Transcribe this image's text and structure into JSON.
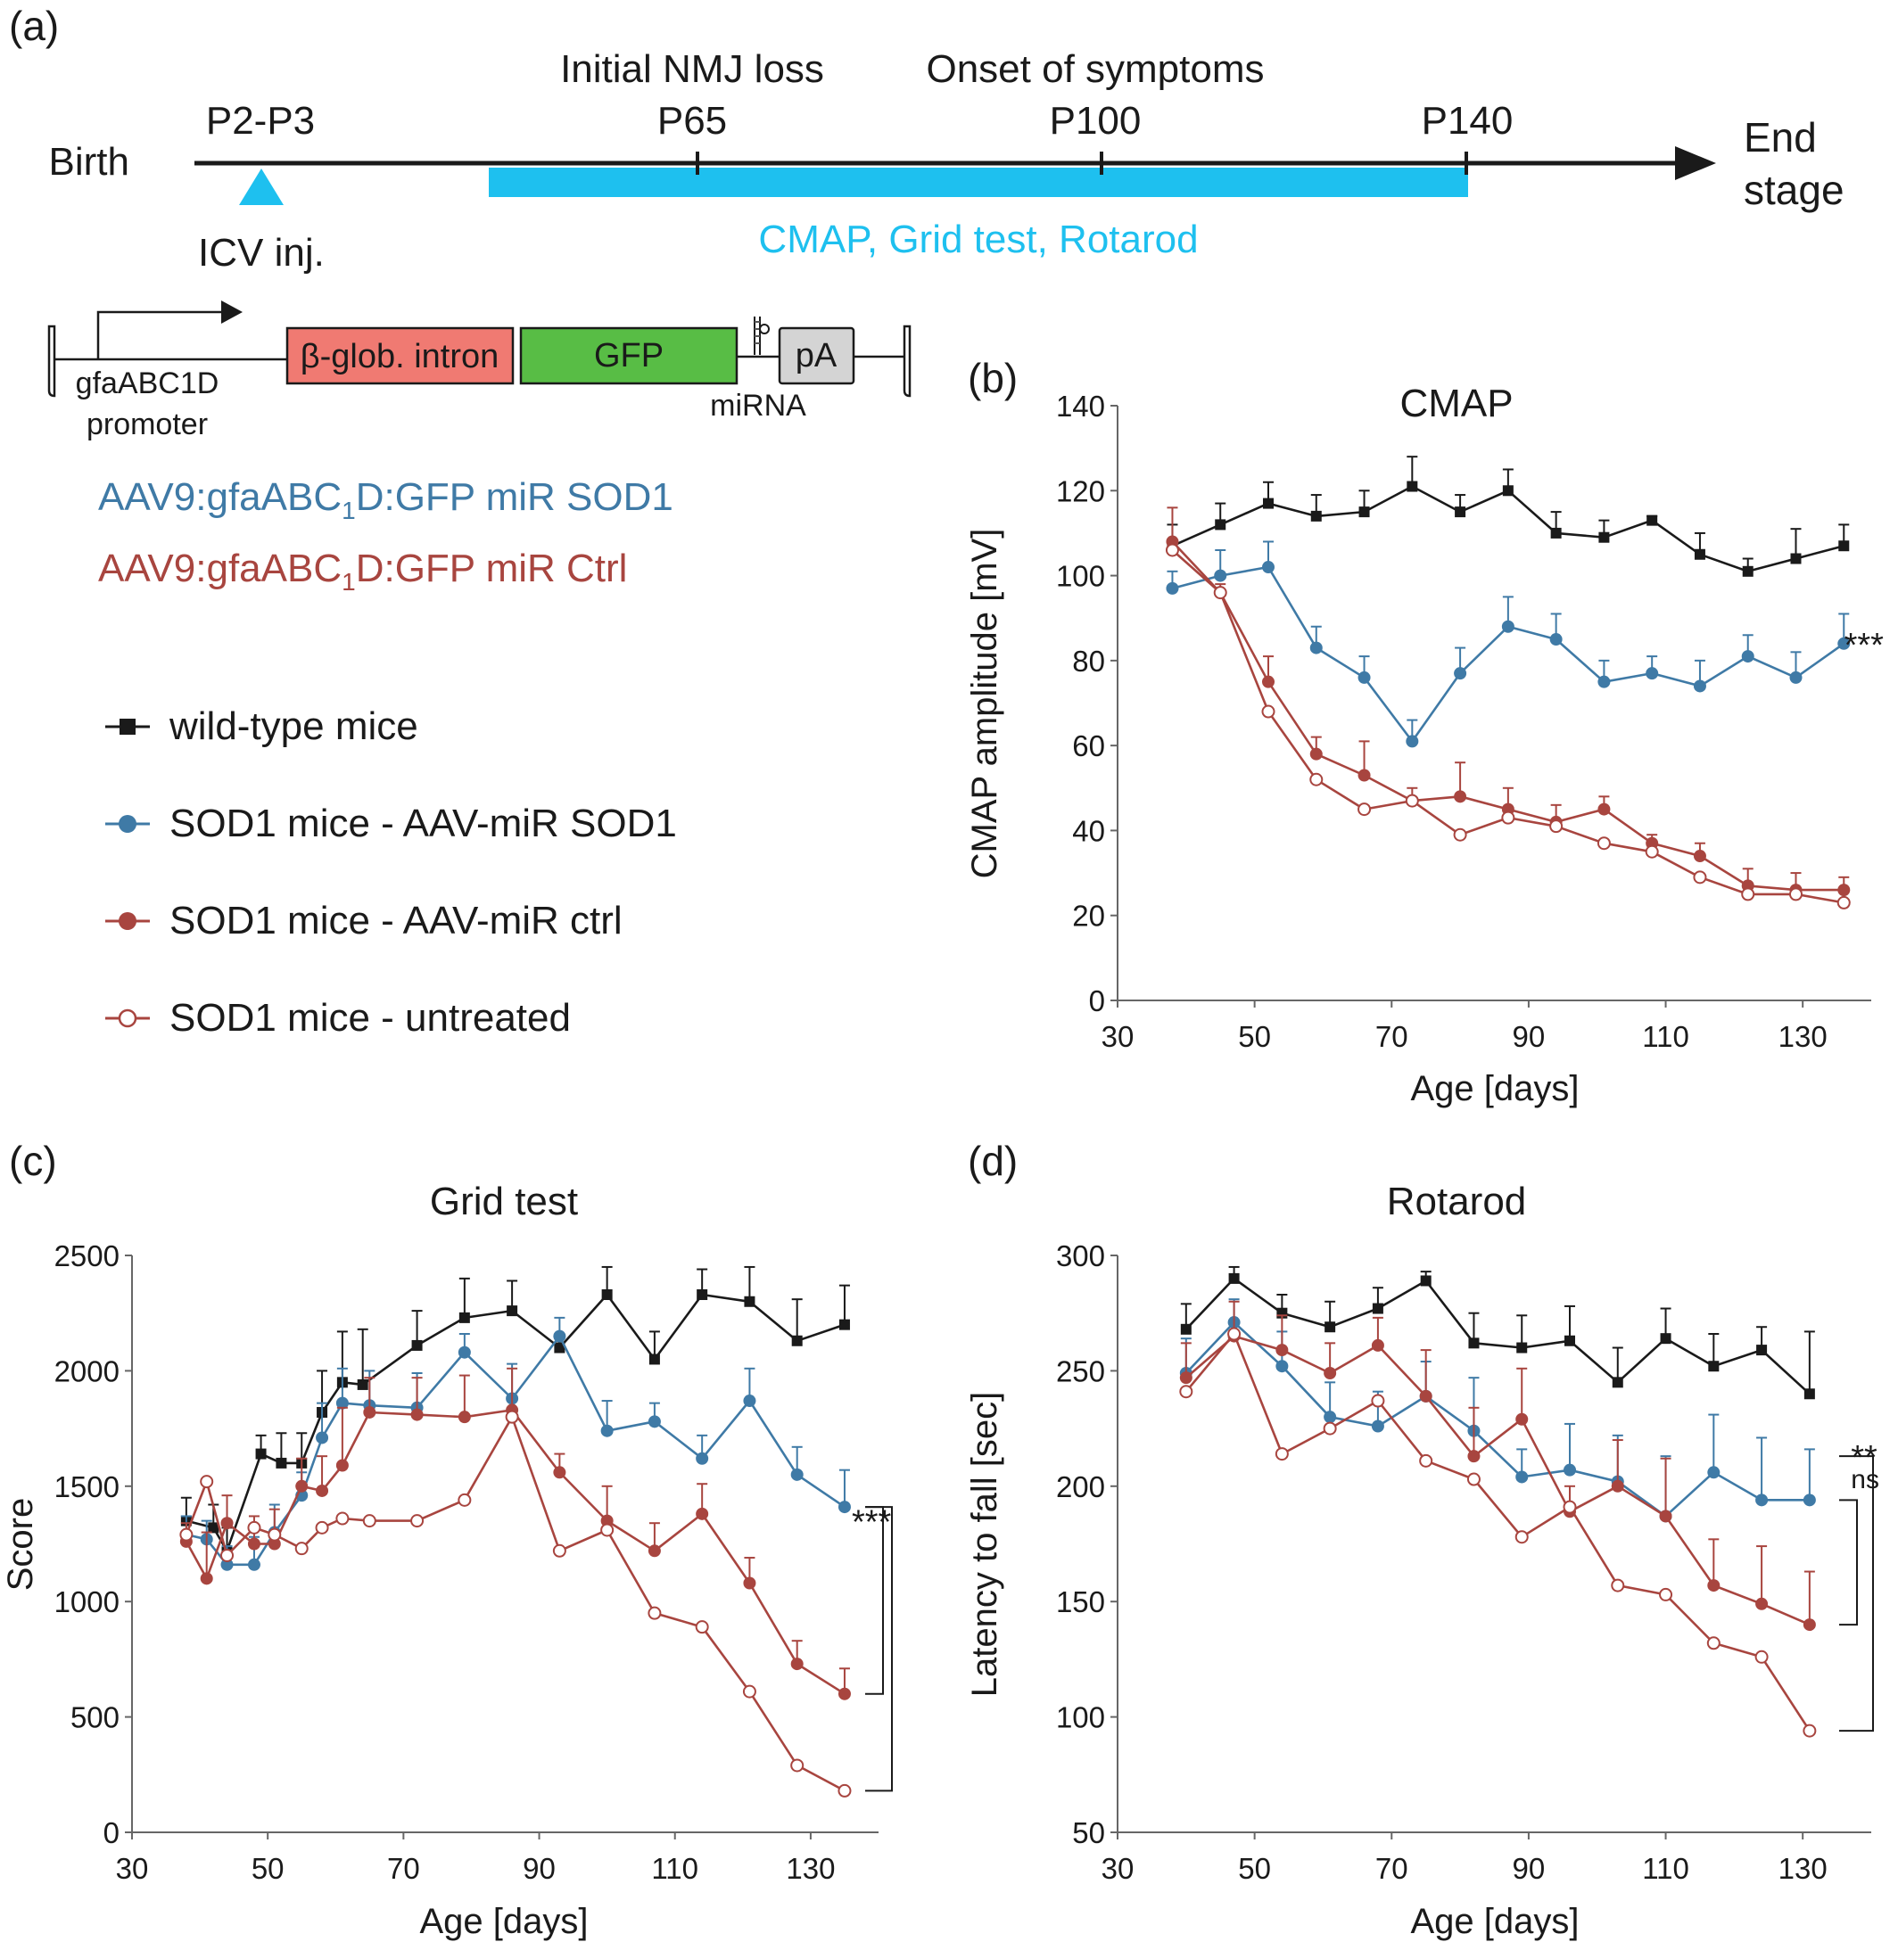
{
  "colors": {
    "black": "#1a1a1a",
    "blue": "#3f7aa6",
    "red": "#a8453f",
    "cyan": "#1ec0ef",
    "intron": "#f07a72",
    "gfp": "#58bd45",
    "pa": "#d4d4d4"
  },
  "panel_a": {
    "label": "(a)",
    "birth": "Birth",
    "end_stage": [
      "End",
      "stage"
    ],
    "milestones": [
      {
        "label": "P2-P3",
        "note": ""
      },
      {
        "label": "P65",
        "note": "Initial NMJ loss"
      },
      {
        "label": "P100",
        "note": "Onset of symptoms"
      },
      {
        "label": "P140",
        "note": ""
      }
    ],
    "injection": "ICV inj.",
    "tests": "CMAP, Grid test, Rotarod",
    "construct": {
      "promoter": [
        "gfaABC1D",
        "promoter"
      ],
      "intron": "β-glob. intron",
      "gfp": "GFP",
      "mirna": "miRNA",
      "pa": "pA"
    },
    "vectors": [
      {
        "prefix": "AAV9:gfaABC",
        "sub": "1",
        "suffix": "D:GFP miR SOD1",
        "color": "#3f7aa6"
      },
      {
        "prefix": "AAV9:gfaABC",
        "sub": "1",
        "suffix": "D:GFP miR Ctrl",
        "color": "#a8453f"
      }
    ],
    "legend": [
      {
        "label": "wild-type mice",
        "marker": "square",
        "color": "#1a1a1a"
      },
      {
        "label": "SOD1 mice - AAV-miR SOD1",
        "marker": "filled-circle",
        "color": "#3f7aa6"
      },
      {
        "label": "SOD1 mice - AAV-miR ctrl",
        "marker": "filled-circle",
        "color": "#a8453f"
      },
      {
        "label": "SOD1 mice - untreated",
        "marker": "open-circle",
        "color": "#a8453f"
      }
    ]
  },
  "chart_data": [
    {
      "panel": "(b)",
      "type": "line",
      "title": "CMAP",
      "xlabel": "Age [days]",
      "ylabel": "CMAP amplitude [mV]",
      "xlim": [
        30,
        140
      ],
      "ylim": [
        0,
        140
      ],
      "xticks": [
        30,
        50,
        70,
        90,
        110,
        130
      ],
      "yticks": [
        0,
        20,
        40,
        60,
        80,
        100,
        120,
        140
      ],
      "legend": "shared (panel a)",
      "annotations": [
        {
          "text": "***",
          "x": 135,
          "y": 84
        }
      ],
      "series": [
        {
          "name": "wild-type mice",
          "color": "#1a1a1a",
          "marker": "square",
          "x": [
            38,
            45,
            52,
            59,
            66,
            73,
            80,
            87,
            94,
            101,
            108,
            115,
            122,
            129,
            136
          ],
          "y": [
            107,
            112,
            117,
            114,
            115,
            121,
            115,
            120,
            110,
            109,
            113,
            105,
            101,
            104,
            107
          ],
          "err": [
            5,
            5,
            5,
            5,
            5,
            7,
            4,
            5,
            5,
            4,
            1,
            5,
            3,
            7,
            5
          ]
        },
        {
          "name": "SOD1 mice - AAV-miR SOD1",
          "color": "#3f7aa6",
          "marker": "filled-circle",
          "x": [
            38,
            45,
            52,
            59,
            66,
            73,
            80,
            87,
            94,
            101,
            108,
            115,
            122,
            129,
            136
          ],
          "y": [
            97,
            100,
            102,
            83,
            76,
            61,
            77,
            88,
            85,
            75,
            77,
            74,
            81,
            76,
            84
          ],
          "err": [
            4,
            6,
            6,
            5,
            5,
            5,
            6,
            7,
            6,
            5,
            4,
            6,
            5,
            6,
            7
          ]
        },
        {
          "name": "SOD1 mice - AAV-miR ctrl",
          "color": "#a8453f",
          "marker": "filled-circle",
          "x": [
            38,
            45,
            52,
            59,
            66,
            73,
            80,
            87,
            94,
            101,
            108,
            115,
            122,
            129,
            136
          ],
          "y": [
            108,
            96,
            75,
            58,
            53,
            47,
            48,
            45,
            42,
            45,
            37,
            34,
            27,
            26,
            26
          ],
          "err": [
            8,
            2,
            6,
            4,
            8,
            3,
            8,
            5,
            4,
            3,
            2,
            3,
            4,
            4,
            3
          ]
        },
        {
          "name": "SOD1 mice - untreated",
          "color": "#a8453f",
          "marker": "open-circle",
          "x": [
            38,
            45,
            52,
            59,
            66,
            73,
            80,
            87,
            94,
            101,
            108,
            115,
            122,
            129,
            136
          ],
          "y": [
            106,
            96,
            68,
            52,
            45,
            47,
            39,
            43,
            41,
            37,
            35,
            29,
            25,
            25,
            23
          ],
          "err": [
            0,
            0,
            0,
            0,
            0,
            0,
            0,
            0,
            0,
            0,
            0,
            0,
            0,
            0,
            0
          ]
        }
      ]
    },
    {
      "panel": "(c)",
      "type": "line",
      "title": "Grid test",
      "xlabel": "Age [days]",
      "ylabel": "Score",
      "xlim": [
        30,
        140
      ],
      "ylim": [
        0,
        2500
      ],
      "xticks": [
        30,
        50,
        70,
        90,
        110,
        130
      ],
      "yticks": [
        0,
        500,
        1000,
        1500,
        2000,
        2500
      ],
      "legend": "shared (panel a)",
      "annotations": [
        {
          "text": "***",
          "x": 135,
          "y": 1350
        }
      ],
      "series": [
        {
          "name": "wild-type mice",
          "color": "#1a1a1a",
          "marker": "square",
          "x": [
            38,
            42,
            44,
            49,
            52,
            55,
            58,
            61,
            64,
            72,
            79,
            86,
            93,
            100,
            107,
            114,
            121,
            128,
            135
          ],
          "y": [
            1350,
            1320,
            1220,
            1640,
            1600,
            1600,
            1820,
            1950,
            1940,
            2110,
            2230,
            2260,
            2100,
            2330,
            2050,
            2330,
            2300,
            2130,
            2200
          ],
          "err": [
            100,
            100,
            100,
            80,
            130,
            130,
            180,
            220,
            240,
            150,
            170,
            130,
            60,
            120,
            120,
            110,
            150,
            180,
            170
          ]
        },
        {
          "name": "SOD1 mice - AAV-miR SOD1",
          "color": "#3f7aa6",
          "marker": "filled-circle",
          "x": [
            38,
            41,
            44,
            48,
            51,
            55,
            58,
            61,
            65,
            72,
            79,
            86,
            93,
            100,
            107,
            114,
            121,
            128,
            135
          ],
          "y": [
            1290,
            1270,
            1160,
            1160,
            1300,
            1460,
            1710,
            1860,
            1850,
            1840,
            2080,
            1880,
            2150,
            1740,
            1780,
            1620,
            1870,
            1550,
            1410
          ],
          "err": [
            80,
            80,
            80,
            120,
            120,
            100,
            150,
            150,
            150,
            150,
            80,
            150,
            80,
            130,
            80,
            100,
            140,
            120,
            160
          ]
        },
        {
          "name": "SOD1 mice - AAV-miR ctrl",
          "color": "#a8453f",
          "marker": "filled-circle",
          "x": [
            38,
            41,
            44,
            48,
            51,
            55,
            58,
            61,
            65,
            72,
            79,
            86,
            93,
            100,
            107,
            114,
            121,
            128,
            135
          ],
          "y": [
            1260,
            1100,
            1340,
            1250,
            1250,
            1500,
            1480,
            1590,
            1820,
            1810,
            1800,
            1830,
            1560,
            1350,
            1220,
            1380,
            1080,
            730,
            600
          ],
          "err": [
            80,
            200,
            120,
            120,
            150,
            120,
            150,
            250,
            150,
            160,
            180,
            180,
            80,
            150,
            120,
            130,
            110,
            100,
            110
          ]
        },
        {
          "name": "SOD1 mice - untreated",
          "color": "#a8453f",
          "marker": "open-circle",
          "x": [
            38,
            41,
            44,
            48,
            51,
            55,
            58,
            61,
            65,
            72,
            79,
            86,
            93,
            100,
            107,
            114,
            121,
            128,
            135
          ],
          "y": [
            1290,
            1520,
            1200,
            1320,
            1290,
            1230,
            1320,
            1360,
            1350,
            1350,
            1440,
            1800,
            1220,
            1310,
            950,
            890,
            610,
            290,
            180
          ],
          "err": [
            0,
            0,
            0,
            0,
            0,
            0,
            0,
            0,
            0,
            0,
            0,
            0,
            0,
            0,
            0,
            0,
            0,
            0,
            0
          ]
        }
      ]
    },
    {
      "panel": "(d)",
      "type": "line",
      "title": "Rotarod",
      "xlabel": "Age [days]",
      "ylabel": "Latency to fall [sec]",
      "xlim": [
        30,
        140
      ],
      "ylim": [
        50,
        300
      ],
      "xticks": [
        30,
        50,
        70,
        90,
        110,
        130
      ],
      "yticks": [
        50,
        100,
        150,
        200,
        250,
        300
      ],
      "legend": "shared (panel a)",
      "annotations": [
        {
          "text": "**",
          "x": 136,
          "y": 213
        },
        {
          "text": "ns",
          "x": 136,
          "y": 203
        }
      ],
      "series": [
        {
          "name": "wild-type mice",
          "color": "#1a1a1a",
          "marker": "square",
          "x": [
            40,
            47,
            54,
            61,
            68,
            75,
            82,
            89,
            96,
            103,
            110,
            117,
            124,
            131
          ],
          "y": [
            268,
            290,
            275,
            269,
            277,
            289,
            262,
            260,
            263,
            245,
            264,
            252,
            259,
            240
          ],
          "err": [
            11,
            5,
            8,
            11,
            9,
            4,
            13,
            14,
            15,
            15,
            13,
            14,
            10,
            27
          ]
        },
        {
          "name": "SOD1 mice - AAV-miR SOD1",
          "color": "#3f7aa6",
          "marker": "filled-circle",
          "x": [
            40,
            47,
            54,
            61,
            68,
            75,
            82,
            89,
            96,
            103,
            110,
            117,
            124,
            131
          ],
          "y": [
            249,
            271,
            252,
            230,
            226,
            239,
            224,
            204,
            207,
            202,
            187,
            206,
            194,
            194
          ],
          "err": [
            15,
            10,
            15,
            15,
            15,
            15,
            23,
            12,
            20,
            20,
            26,
            25,
            27,
            22
          ]
        },
        {
          "name": "SOD1 mice - AAV-miR ctrl",
          "color": "#a8453f",
          "marker": "filled-circle",
          "x": [
            40,
            47,
            54,
            61,
            68,
            75,
            82,
            89,
            96,
            103,
            110,
            117,
            124,
            131
          ],
          "y": [
            247,
            265,
            259,
            249,
            261,
            239,
            213,
            229,
            189,
            200,
            187,
            157,
            149,
            140
          ],
          "err": [
            15,
            15,
            15,
            13,
            12,
            20,
            21,
            22,
            11,
            20,
            25,
            20,
            25,
            23
          ]
        },
        {
          "name": "SOD1 mice - untreated",
          "color": "#a8453f",
          "marker": "open-circle",
          "x": [
            40,
            47,
            54,
            61,
            68,
            75,
            82,
            89,
            96,
            103,
            110,
            117,
            124,
            131
          ],
          "y": [
            241,
            266,
            214,
            225,
            237,
            211,
            203,
            178,
            191,
            157,
            153,
            132,
            126,
            94
          ],
          "err": [
            0,
            0,
            0,
            0,
            0,
            0,
            0,
            0,
            0,
            0,
            0,
            0,
            0,
            0
          ]
        }
      ]
    }
  ]
}
